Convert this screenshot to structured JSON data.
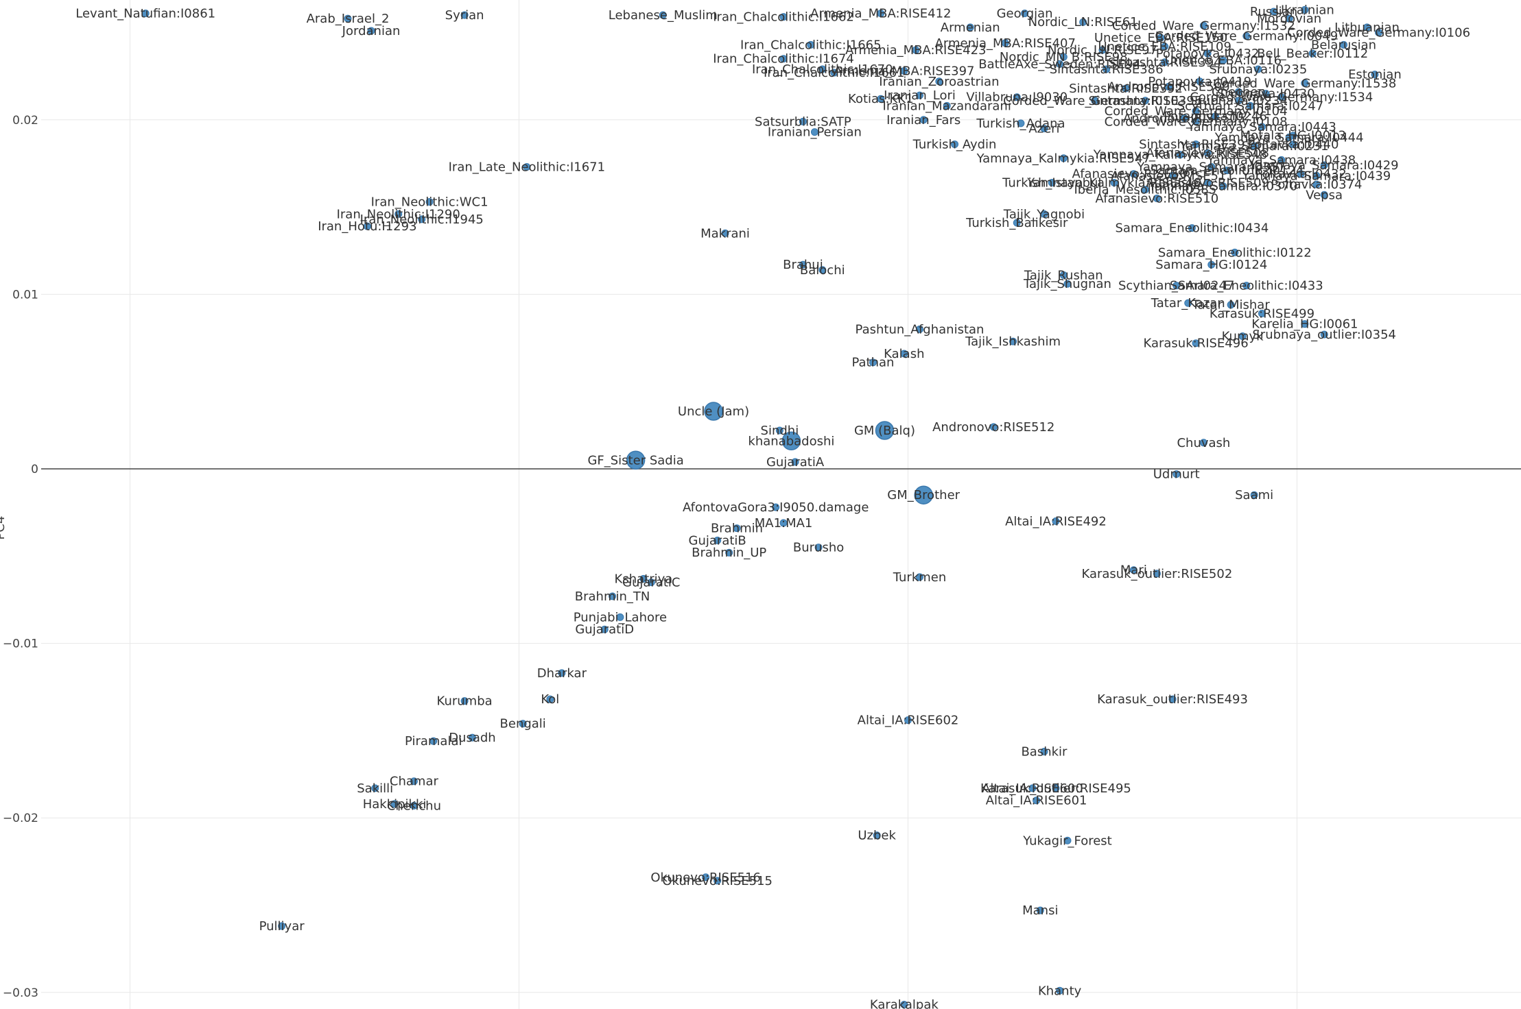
{
  "chart_data": {
    "type": "scatter",
    "ylim": [
      -0.0309,
      0.0268
    ],
    "xlim": [
      -0.0207,
      0.0194
    ],
    "y_ticks": [
      {
        "v": 0.02,
        "label": "0.02"
      },
      {
        "v": 0.01,
        "label": "0.01"
      },
      {
        "v": 0,
        "label": "0"
      },
      {
        "v": -0.01,
        "label": "−0.01"
      },
      {
        "v": -0.02,
        "label": "−0.02"
      },
      {
        "v": -0.03,
        "label": "−0.03"
      }
    ],
    "x_grid": [
      -0.015,
      -0.005,
      0.005,
      0.015
    ],
    "grid": true,
    "ylabel": "PC4",
    "points": [
      {
        "label": "Uncle (Jam)",
        "x": 0.0,
        "y": 0.0033,
        "big": true
      },
      {
        "label": "GF_Sister Sadia",
        "x": -0.002,
        "y": 0.0005,
        "big": true
      },
      {
        "label": "GM (Balq)",
        "x": 0.0044,
        "y": 0.0022,
        "big": true
      },
      {
        "label": "GM_Brother",
        "x": 0.0054,
        "y": -0.0015,
        "big": true
      },
      {
        "label": "khanabadoshi",
        "x": 0.002,
        "y": 0.0016,
        "big": true
      },
      {
        "label": "Sindhi",
        "x": 0.0017,
        "y": 0.0022
      },
      {
        "label": "GujaratiA",
        "x": 0.0021,
        "y": 0.0004
      },
      {
        "label": "Andronovo:RISE512",
        "x": 0.0072,
        "y": 0.0024
      },
      {
        "label": "Chuvash",
        "x": 0.0126,
        "y": 0.0015
      },
      {
        "label": "Udmurt",
        "x": 0.0119,
        "y": -0.0003
      },
      {
        "label": "Saami",
        "x": 0.0139,
        "y": -0.0015
      },
      {
        "label": "AfontovaGora3:I9050.damage",
        "x": 0.0016,
        "y": -0.0022
      },
      {
        "label": "MA1:MA1",
        "x": 0.0018,
        "y": -0.0031
      },
      {
        "label": "Brahmin",
        "x": 0.0006,
        "y": -0.0034
      },
      {
        "label": "GujaratiB",
        "x": 0.0001,
        "y": -0.0041
      },
      {
        "label": "Brahmin_UP",
        "x": 0.0004,
        "y": -0.0048
      },
      {
        "label": "Burusho",
        "x": 0.0027,
        "y": -0.0045
      },
      {
        "label": "Altai_IA:RISE492",
        "x": 0.0088,
        "y": -0.003
      },
      {
        "label": "Turkmen",
        "x": 0.0053,
        "y": -0.0062
      },
      {
        "label": "Karasuk_outlier:RISE502",
        "x": 0.0114,
        "y": -0.006
      },
      {
        "label": "Mari",
        "x": 0.0108,
        "y": -0.0058
      },
      {
        "label": "Kshatriya",
        "x": -0.0018,
        "y": -0.0063
      },
      {
        "label": "GujaratiC",
        "x": -0.0016,
        "y": -0.0065
      },
      {
        "label": "Brahmin_TN",
        "x": -0.0026,
        "y": -0.0073
      },
      {
        "label": "Punjabi_Lahore",
        "x": -0.0024,
        "y": -0.0085
      },
      {
        "label": "GujaratiD",
        "x": -0.0028,
        "y": -0.0092
      },
      {
        "label": "Dharkar",
        "x": -0.0039,
        "y": -0.0117
      },
      {
        "label": "Kol",
        "x": -0.0042,
        "y": -0.0132
      },
      {
        "label": "Kurumba",
        "x": -0.0064,
        "y": -0.0133
      },
      {
        "label": "Bengali",
        "x": -0.0049,
        "y": -0.0146
      },
      {
        "label": "Dusadh",
        "x": -0.0062,
        "y": -0.0154
      },
      {
        "label": "Piramalai",
        "x": -0.0072,
        "y": -0.0156
      },
      {
        "label": "Karasuk_outlier:RISE493",
        "x": 0.0118,
        "y": -0.0132
      },
      {
        "label": "Altai_IA:RISE602",
        "x": 0.005,
        "y": -0.0144
      },
      {
        "label": "Bashkir",
        "x": 0.0085,
        "y": -0.0162
      },
      {
        "label": "Chamar",
        "x": -0.0077,
        "y": -0.0179
      },
      {
        "label": "Sakilli",
        "x": -0.0087,
        "y": -0.0183
      },
      {
        "label": "Hakkipikki",
        "x": -0.0082,
        "y": -0.0192
      },
      {
        "label": "Chenchu",
        "x": -0.0077,
        "y": -0.0193
      },
      {
        "label": "Altai_IA:RISE600",
        "x": 0.0082,
        "y": -0.0183
      },
      {
        "label": "Karasuk_outlier:RISE495",
        "x": 0.0088,
        "y": -0.0183
      },
      {
        "label": "Altai_IA:RISE601",
        "x": 0.0083,
        "y": -0.019
      },
      {
        "label": "Uzbek",
        "x": 0.0042,
        "y": -0.021
      },
      {
        "label": "Yukagir_Forest",
        "x": 0.0091,
        "y": -0.0213
      },
      {
        "label": "Okunevo:RISE516",
        "x": -0.0002,
        "y": -0.0234
      },
      {
        "label": "Okunevo:RISE515",
        "x": 0.0001,
        "y": -0.0236
      },
      {
        "label": "Mansi",
        "x": 0.0084,
        "y": -0.0253
      },
      {
        "label": "Pulliyar",
        "x": -0.0111,
        "y": -0.0262
      },
      {
        "label": "Khanty",
        "x": 0.0089,
        "y": -0.0299
      },
      {
        "label": "Karakalpak",
        "x": 0.0049,
        "y": -0.0307
      },
      {
        "label": "Pashtun_Afghanistan",
        "x": 0.0053,
        "y": 0.008
      },
      {
        "label": "Tajik_Ishkashim",
        "x": 0.0077,
        "y": 0.0073
      },
      {
        "label": "Kalash",
        "x": 0.0049,
        "y": 0.0066
      },
      {
        "label": "Pathan",
        "x": 0.0041,
        "y": 0.0061
      },
      {
        "label": "Tajik_Rushan",
        "x": 0.009,
        "y": 0.0111
      },
      {
        "label": "Tajik_Shugnan",
        "x": 0.0091,
        "y": 0.0106
      },
      {
        "label": "Brahui",
        "x": 0.0023,
        "y": 0.0117
      },
      {
        "label": "Balochi",
        "x": 0.0028,
        "y": 0.0114
      },
      {
        "label": "Makrani",
        "x": 0.0003,
        "y": 0.0135
      },
      {
        "label": "Turkish_Balikesir",
        "x": 0.0078,
        "y": 0.0141
      },
      {
        "label": "Tajik_Yagnobi",
        "x": 0.0085,
        "y": 0.0146
      },
      {
        "label": "Samara_Eneolithic:I0434",
        "x": 0.0123,
        "y": 0.0138
      },
      {
        "label": "Samara_Eneolithic:I0122",
        "x": 0.0134,
        "y": 0.0124
      },
      {
        "label": "Samara_HG:I0124",
        "x": 0.0128,
        "y": 0.0117
      },
      {
        "label": "Scythian_SArI0247",
        "x": 0.0119,
        "y": 0.0105
      },
      {
        "label": "Samara_Eneolithic:I0433",
        "x": 0.0137,
        "y": 0.0105
      },
      {
        "label": "Tatar_Kazan",
        "x": 0.0122,
        "y": 0.0095
      },
      {
        "label": "Tatar_Mishar",
        "x": 0.0133,
        "y": 0.0094
      },
      {
        "label": "Karasuk:RISE499",
        "x": 0.0141,
        "y": 0.0089
      },
      {
        "label": "Karelia_HG:I0061",
        "x": 0.0152,
        "y": 0.0083
      },
      {
        "label": "Srubnaya_outlier:I0354",
        "x": 0.0157,
        "y": 0.0077
      },
      {
        "label": "Kumyk",
        "x": 0.0136,
        "y": 0.0076
      },
      {
        "label": "Karasuk:RISE496",
        "x": 0.0124,
        "y": 0.0072
      },
      {
        "label": "Iran_Late_Neolithic:I1671",
        "x": -0.0048,
        "y": 0.0173
      },
      {
        "label": "Iran_Neolithic:WC1",
        "x": -0.0073,
        "y": 0.0153
      },
      {
        "label": "Iran_Neolithic:I1290",
        "x": -0.0081,
        "y": 0.0146
      },
      {
        "label": "Iran_Neolithic:I1945",
        "x": -0.0075,
        "y": 0.0143
      },
      {
        "label": "Iran_Hotu:I1293",
        "x": -0.0089,
        "y": 0.0139
      },
      {
        "label": "Satsurblia:SATP",
        "x": 0.0023,
        "y": 0.0199
      },
      {
        "label": "Iranian_Persian",
        "x": 0.0026,
        "y": 0.0193
      },
      {
        "label": "Iranian_Fars",
        "x": 0.0054,
        "y": 0.02
      },
      {
        "label": "Turkish_Adana",
        "x": 0.0079,
        "y": 0.0198
      },
      {
        "label": "Azeri",
        "x": 0.0085,
        "y": 0.0195
      },
      {
        "label": "Turkish_Aydin",
        "x": 0.0062,
        "y": 0.0186
      },
      {
        "label": "Yamnaya_Kalmykia:RISE547",
        "x": 0.009,
        "y": 0.0178
      },
      {
        "label": "Turkish_Istanbul",
        "x": 0.0087,
        "y": 0.0164
      },
      {
        "label": "Yamnaya_Kalmykia:RISE546",
        "x": 0.0103,
        "y": 0.0164
      },
      {
        "label": "Afanasievo:RISE510",
        "x": 0.0114,
        "y": 0.0155
      },
      {
        "label": "Iberia_Mesolithic:I0585",
        "x": 0.0111,
        "y": 0.016
      },
      {
        "label": "Afanasievo:RISE507",
        "x": 0.0108,
        "y": 0.0169
      },
      {
        "label": "Poltavka:I0374",
        "x": 0.0155,
        "y": 0.0163
      },
      {
        "label": "Vepsa",
        "x": 0.0157,
        "y": 0.0157
      },
      {
        "label": "Kotias:KK1",
        "x": 0.0043,
        "y": 0.0212
      },
      {
        "label": "Iranian_Lori",
        "x": 0.0053,
        "y": 0.0214
      },
      {
        "label": "Iranian_Mazandarani",
        "x": 0.006,
        "y": 0.0208
      },
      {
        "label": "Villabruna:I9030",
        "x": 0.0078,
        "y": 0.0213
      },
      {
        "label": "Iranian_Zoroastrian",
        "x": 0.0058,
        "y": 0.0222
      },
      {
        "label": "Iran_Chalcolithic:I1665",
        "x": 0.0025,
        "y": 0.0243
      },
      {
        "label": "Iran_Chalcolithic:I1674",
        "x": 0.0018,
        "y": 0.0235
      },
      {
        "label": "Iran_Chalcolithic:I1670",
        "x": 0.0028,
        "y": 0.0229
      },
      {
        "label": "Iran_Chalcolithic:I1661",
        "x": 0.0031,
        "y": 0.0227
      },
      {
        "label": "Armenia_MBA:RISE397",
        "x": 0.0049,
        "y": 0.0228
      },
      {
        "label": "Armenia_MBA:RISE423",
        "x": 0.0052,
        "y": 0.024
      },
      {
        "label": "Armenia_MBA:RISE412",
        "x": 0.0043,
        "y": 0.0261
      },
      {
        "label": "Iran_Chalcolithic:I1662",
        "x": 0.0018,
        "y": 0.0259
      },
      {
        "label": "Sintashta:RISE392",
        "x": 0.0106,
        "y": 0.0218
      },
      {
        "label": "Corded_Ware_Germany:I0103",
        "x": 0.0098,
        "y": 0.0211
      },
      {
        "label": "Corded_Ware_Germany:I0104",
        "x": 0.0124,
        "y": 0.0205
      },
      {
        "label": "Potapovka:I0246",
        "x": 0.0129,
        "y": 0.0202
      },
      {
        "label": "Yamnaya_Samara:I0443",
        "x": 0.0141,
        "y": 0.0196
      },
      {
        "label": "Motala_HG:I0013",
        "x": 0.0149,
        "y": 0.0191
      },
      {
        "label": "Estonian",
        "x": 0.017,
        "y": 0.0226
      },
      {
        "label": "Lithuanian",
        "x": 0.0168,
        "y": 0.0253
      },
      {
        "label": "Belarusian",
        "x": 0.0162,
        "y": 0.0243
      },
      {
        "label": "Unetice_EBA:RISE109",
        "x": 0.0116,
        "y": 0.0242
      },
      {
        "label": "Andronovo:RISE500",
        "x": 0.0117,
        "y": 0.0219
      },
      {
        "label": "Nordic_LN:RISE61",
        "x": 0.0095,
        "y": 0.0256
      },
      {
        "label": "Scythian_Samara:I0247",
        "x": 0.0138,
        "y": 0.0208
      },
      {
        "label": "Yamnaya_Samara:I0444",
        "x": 0.0148,
        "y": 0.019
      },
      {
        "label": "Poltavka:I0432",
        "x": 0.0151,
        "y": 0.0169
      },
      {
        "label": "Chechen",
        "x": 0.0135,
        "y": 0.0216
      },
      {
        "label": "BattleAxe_Sweden:RISE94",
        "x": 0.0089,
        "y": 0.0232
      },
      {
        "label": "Sintashta:RISE386",
        "x": 0.0101,
        "y": 0.0229
      },
      {
        "label": "Potapovka:I0419",
        "x": 0.0125,
        "y": 0.0222
      },
      {
        "label": "Corded_Ware_Germany:I1538",
        "x": 0.0152,
        "y": 0.0221
      },
      {
        "label": "Afanasievo:RISE509",
        "x": 0.0127,
        "y": 0.0164
      },
      {
        "label": "Nordic_MN_B:RISE98",
        "x": 0.009,
        "y": 0.0236
      },
      {
        "label": "Yamnaya_Samara:I0429",
        "x": 0.0157,
        "y": 0.0174
      },
      {
        "label": "Srubnaya:I0234",
        "x": 0.0135,
        "y": 0.0211
      },
      {
        "label": "Sintashta:RISE394",
        "x": 0.0116,
        "y": 0.0233
      },
      {
        "label": "Corded_Ware_Germany:I0106",
        "x": 0.0171,
        "y": 0.025
      },
      {
        "label": "Corded_Ware_Germany:I0108",
        "x": 0.0124,
        "y": 0.0199
      },
      {
        "label": "Andronovo:RISE505",
        "x": 0.0121,
        "y": 0.0201
      },
      {
        "label": "Yamnaya_Samara:I0357",
        "x": 0.0128,
        "y": 0.0173
      },
      {
        "label": "Unetice_EBA:I0116",
        "x": 0.0131,
        "y": 0.0234
      },
      {
        "label": "Srubnaya:I0235",
        "x": 0.014,
        "y": 0.0229
      },
      {
        "label": "Bell_Beaker:I0112",
        "x": 0.0154,
        "y": 0.0238
      },
      {
        "label": "Afanasievo:RISE511",
        "x": 0.0118,
        "y": 0.0168
      },
      {
        "label": "Yamnaya_Samara:I0439",
        "x": 0.0155,
        "y": 0.0168
      },
      {
        "label": "Srubnaya:I0430",
        "x": 0.0142,
        "y": 0.0215
      },
      {
        "label": "Sintashta:RISE395",
        "x": 0.0111,
        "y": 0.0211
      },
      {
        "label": "Corded_Ware_Germany:I1534",
        "x": 0.0146,
        "y": 0.0213
      },
      {
        "label": "Yamnaya_Samara:I0438",
        "x": 0.0146,
        "y": 0.0177
      },
      {
        "label": "Afanasievo:RISE508",
        "x": 0.0127,
        "y": 0.0181
      },
      {
        "label": "Sintashta:RISE393",
        "x": 0.0124,
        "y": 0.0186
      },
      {
        "label": "Yamnaya_Samara:I0231",
        "x": 0.0139,
        "y": 0.0185
      },
      {
        "label": "Potapovka:I0432",
        "x": 0.0127,
        "y": 0.0238
      },
      {
        "label": "Nordic_LN:RISE97",
        "x": 0.01,
        "y": 0.024
      },
      {
        "label": "Corded_Ware_Germany:I1532",
        "x": 0.0126,
        "y": 0.0254
      },
      {
        "label": "Lebanese_Muslim",
        "x": -0.0013,
        "y": 0.026
      },
      {
        "label": "Syrian",
        "x": -0.0064,
        "y": 0.026
      },
      {
        "label": "Arab_Israel_2",
        "x": -0.0094,
        "y": 0.0258
      },
      {
        "label": "Jordanian",
        "x": -0.0088,
        "y": 0.0251
      },
      {
        "label": "Levant_Natufian:I0861",
        "x": -0.0146,
        "y": 0.0261
      },
      {
        "label": "Georgian",
        "x": 0.008,
        "y": 0.0261
      },
      {
        "label": "Armenian",
        "x": 0.0066,
        "y": 0.0253
      },
      {
        "label": "Armenia_MBA:RISE407",
        "x": 0.0075,
        "y": 0.0244
      },
      {
        "label": "Unetice_EBA:RISE150",
        "x": 0.0115,
        "y": 0.0247
      },
      {
        "label": "Yamnaya_Kalmykia:RISE548",
        "x": 0.012,
        "y": 0.018
      },
      {
        "label": "Poltavka:I0440",
        "x": 0.0149,
        "y": 0.0186
      },
      {
        "label": "Mordovian",
        "x": 0.0148,
        "y": 0.0258
      },
      {
        "label": "Samara_Eneolithic:I0124",
        "x": 0.0132,
        "y": 0.0171
      },
      {
        "label": "Yamnaya_Samara:I0370",
        "x": 0.0131,
        "y": 0.0162
      },
      {
        "label": "Corded_Ware_Germany:I0049",
        "x": 0.0137,
        "y": 0.0248
      },
      {
        "label": "Russian",
        "x": 0.0144,
        "y": 0.0262
      },
      {
        "label": "Ukrainian",
        "x": 0.0152,
        "y": 0.0263
      }
    ]
  }
}
